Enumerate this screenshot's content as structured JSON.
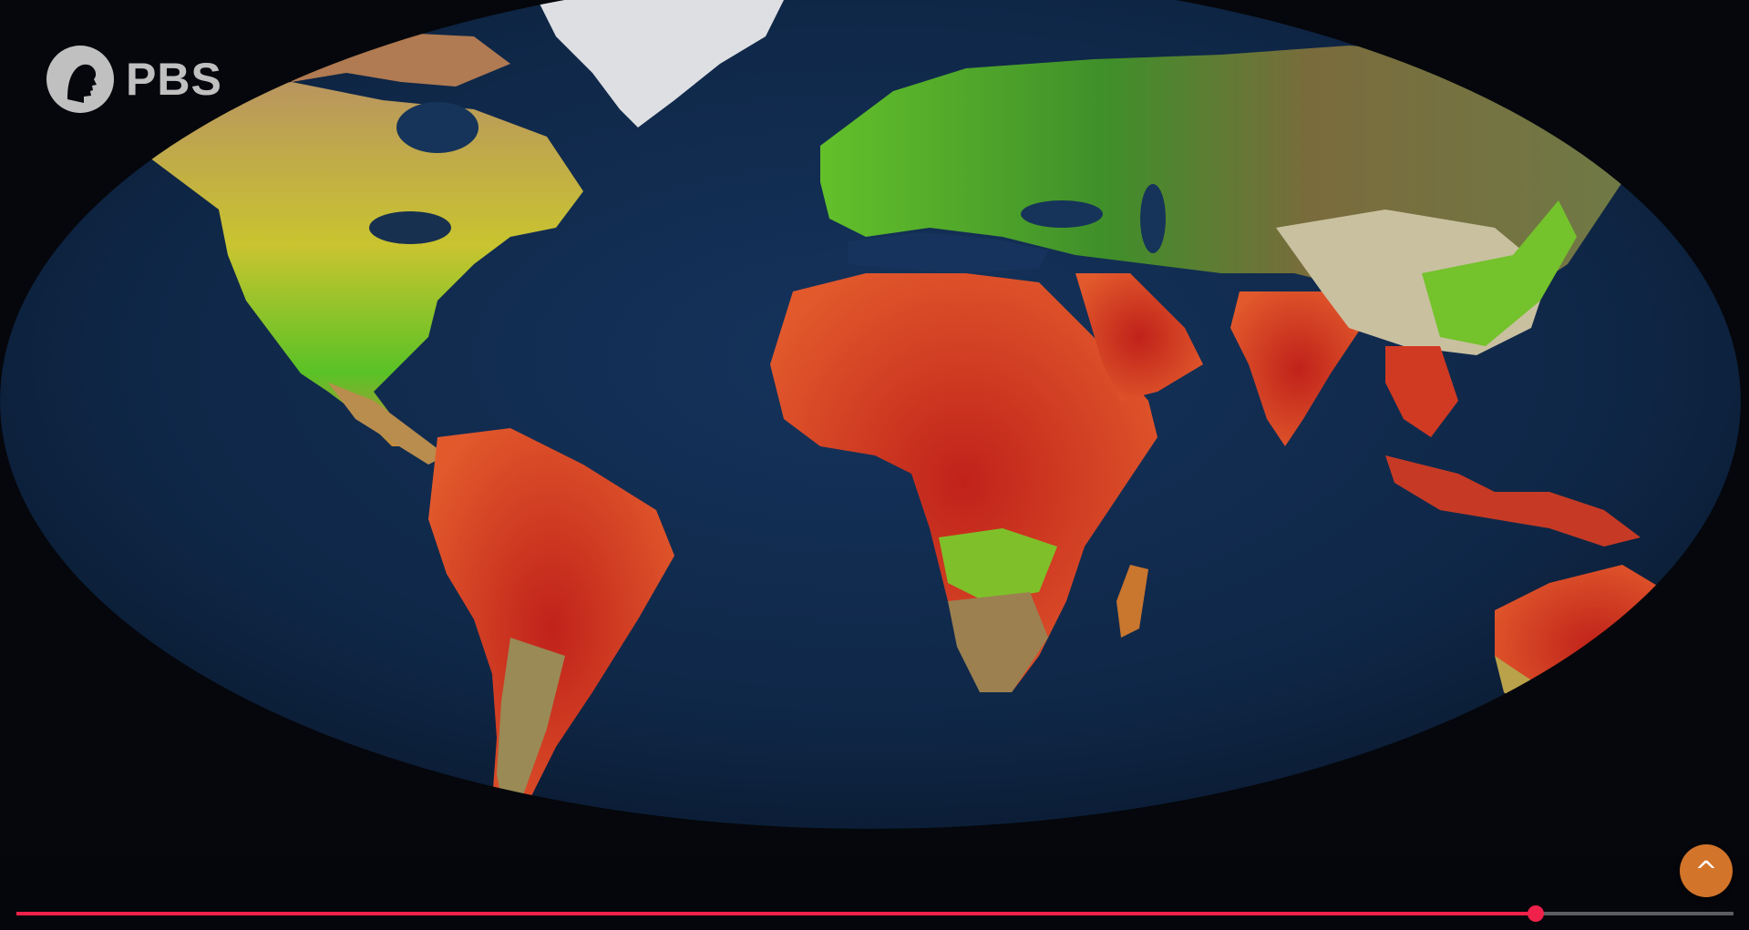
{
  "logo": {
    "text": "PBS",
    "icon": "pbs-head-logo-icon"
  },
  "corner_button": {
    "glyph": "^",
    "icon": "chevron-up-icon",
    "color": "#d2742a"
  },
  "progress": {
    "fraction": 0.885,
    "fill_color": "#f0214a"
  },
  "map": {
    "ocean_color": "#0f2747",
    "land_colors": {
      "hot": "#d8341f",
      "warm": "#c89a64",
      "temperate": "#c9c42f",
      "green": "#4fbf23",
      "ice": "#e6e6e8"
    }
  }
}
